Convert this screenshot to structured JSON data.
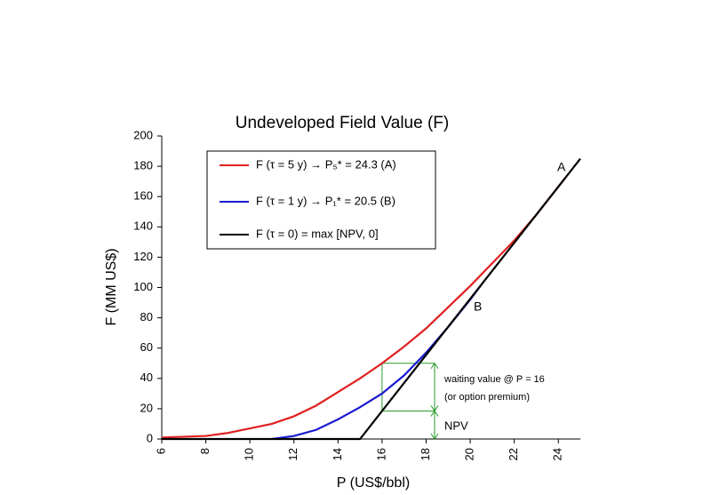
{
  "chart_data": {
    "type": "line",
    "title": "Undeveloped Field Value (F)",
    "x_label": "P (US$/bbl)",
    "y_label": "F (MM US$)",
    "xlim": [
      6,
      25
    ],
    "ylim": [
      0,
      200
    ],
    "xticks": [
      6,
      8,
      10,
      12,
      14,
      16,
      18,
      20,
      22,
      24
    ],
    "yticks": [
      0,
      20,
      40,
      60,
      80,
      100,
      120,
      140,
      160,
      180,
      200
    ],
    "series": [
      {
        "name": "F (τ = 5 y) → P₅* = 24.3 (A)",
        "color": "#e02020",
        "x": [
          6,
          7,
          8,
          9,
          10,
          11,
          12,
          13,
          14,
          15,
          16,
          17,
          18,
          19,
          20,
          21,
          22,
          23,
          24.3
        ],
        "values": [
          1,
          1.5,
          2,
          4,
          7,
          10,
          15,
          22,
          31,
          40,
          50,
          61,
          73,
          87,
          101,
          116,
          131,
          148,
          172
        ]
      },
      {
        "name": "F (τ = 1 y) → P₁* = 20.5 (B)",
        "color": "#1a1ad0",
        "x": [
          11,
          12,
          13,
          14,
          15,
          16,
          17,
          18,
          19,
          20,
          20.5
        ],
        "values": [
          0,
          2,
          6,
          13,
          21,
          30,
          42,
          57,
          74,
          92,
          101.7
        ]
      },
      {
        "name": "F (τ = 0) = max [NPV, 0]",
        "color": "#000000",
        "x": [
          6,
          15,
          16,
          25
        ],
        "values": [
          0,
          0,
          18.5,
          185
        ]
      }
    ],
    "annotations": [
      "A",
      "B",
      "waiting value @ P = 16",
      "(or option premium)",
      "NPV"
    ]
  }
}
